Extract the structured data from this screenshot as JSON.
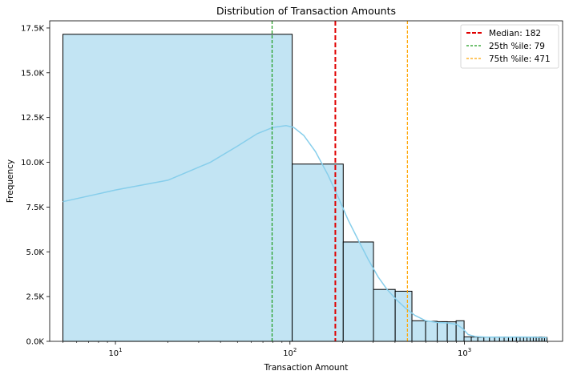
{
  "chart_data": {
    "type": "histogram",
    "title": "Distribution of Transaction Amounts",
    "xlabel": "Transaction Amount",
    "ylabel": "Frequency",
    "x_scale": "log",
    "xlim": [
      4.2,
      3650
    ],
    "ylim": [
      0,
      17900
    ],
    "x_tick_labels": [
      {
        "value": 10,
        "base": "10",
        "exp": "1"
      },
      {
        "value": 100,
        "base": "10",
        "exp": "2"
      },
      {
        "value": 1000,
        "base": "10",
        "exp": "3"
      }
    ],
    "y_ticks": [
      {
        "value": 0,
        "label": "0.0K"
      },
      {
        "value": 2500,
        "label": "2.5K"
      },
      {
        "value": 5000,
        "label": "5.0K"
      },
      {
        "value": 7500,
        "label": "7.5K"
      },
      {
        "value": 10000,
        "label": "10.0K"
      },
      {
        "value": 12500,
        "label": "12.5K"
      },
      {
        "value": 15000,
        "label": "15.0K"
      },
      {
        "value": 17500,
        "label": "17.5K"
      }
    ],
    "bins": [
      {
        "start": 5,
        "end": 103,
        "count": 17150
      },
      {
        "start": 103,
        "end": 202,
        "count": 9900
      },
      {
        "start": 202,
        "end": 301,
        "count": 5550
      },
      {
        "start": 301,
        "end": 401,
        "count": 2900
      },
      {
        "start": 401,
        "end": 500,
        "count": 2800
      },
      {
        "start": 500,
        "end": 599,
        "count": 1150
      },
      {
        "start": 599,
        "end": 698,
        "count": 1120
      },
      {
        "start": 698,
        "end": 797,
        "count": 1100
      },
      {
        "start": 797,
        "end": 896,
        "count": 1090
      },
      {
        "start": 896,
        "end": 995,
        "count": 1150
      },
      {
        "start": 995,
        "end": 1094,
        "count": 250
      },
      {
        "start": 1094,
        "end": 1193,
        "count": 240
      },
      {
        "start": 1193,
        "end": 1292,
        "count": 230
      },
      {
        "start": 1292,
        "end": 1391,
        "count": 240
      },
      {
        "start": 1391,
        "end": 1490,
        "count": 230
      },
      {
        "start": 1490,
        "end": 1589,
        "count": 240
      },
      {
        "start": 1589,
        "end": 1688,
        "count": 230
      },
      {
        "start": 1688,
        "end": 1787,
        "count": 240
      },
      {
        "start": 1787,
        "end": 1886,
        "count": 230
      },
      {
        "start": 1886,
        "end": 1985,
        "count": 240
      },
      {
        "start": 1985,
        "end": 2084,
        "count": 230
      },
      {
        "start": 2084,
        "end": 2183,
        "count": 240
      },
      {
        "start": 2183,
        "end": 2282,
        "count": 230
      },
      {
        "start": 2282,
        "end": 2381,
        "count": 240
      },
      {
        "start": 2381,
        "end": 2480,
        "count": 230
      },
      {
        "start": 2480,
        "end": 2579,
        "count": 240
      },
      {
        "start": 2579,
        "end": 2678,
        "count": 230
      },
      {
        "start": 2678,
        "end": 2777,
        "count": 240
      },
      {
        "start": 2777,
        "end": 2876,
        "count": 230
      },
      {
        "start": 2876,
        "end": 2975,
        "count": 220
      }
    ],
    "kde": [
      [
        5,
        7800
      ],
      [
        10,
        8450
      ],
      [
        20,
        9000
      ],
      [
        35,
        10000
      ],
      [
        50,
        10900
      ],
      [
        65,
        11600
      ],
      [
        80,
        11950
      ],
      [
        95,
        12050
      ],
      [
        105,
        11950
      ],
      [
        120,
        11500
      ],
      [
        140,
        10600
      ],
      [
        165,
        9300
      ],
      [
        190,
        8000
      ],
      [
        215,
        6800
      ],
      [
        245,
        5700
      ],
      [
        280,
        4600
      ],
      [
        320,
        3600
      ],
      [
        360,
        2900
      ],
      [
        410,
        2300
      ],
      [
        460,
        1850
      ],
      [
        520,
        1450
      ],
      [
        600,
        1150
      ],
      [
        700,
        1050
      ],
      [
        800,
        1030
      ],
      [
        900,
        950
      ],
      [
        980,
        700
      ],
      [
        1050,
        380
      ],
      [
        1150,
        270
      ],
      [
        1300,
        240
      ],
      [
        1600,
        230
      ],
      [
        2000,
        240
      ],
      [
        2400,
        235
      ],
      [
        2700,
        220
      ],
      [
        2975,
        200
      ]
    ],
    "reference_lines": [
      {
        "name": "Median: 182",
        "value": 182,
        "color": "#e00000",
        "style": "dashed"
      },
      {
        "name": "25th %ile: 79",
        "value": 79,
        "color": "#1a9a1a",
        "style": "dashed"
      },
      {
        "name": "75th %ile: 471",
        "value": 471,
        "color": "#ffa500",
        "style": "dashed"
      }
    ],
    "legend_placement": "top-right",
    "bar_color": "#c2e4f3",
    "kde_color": "#87ceeb",
    "grid": false
  }
}
